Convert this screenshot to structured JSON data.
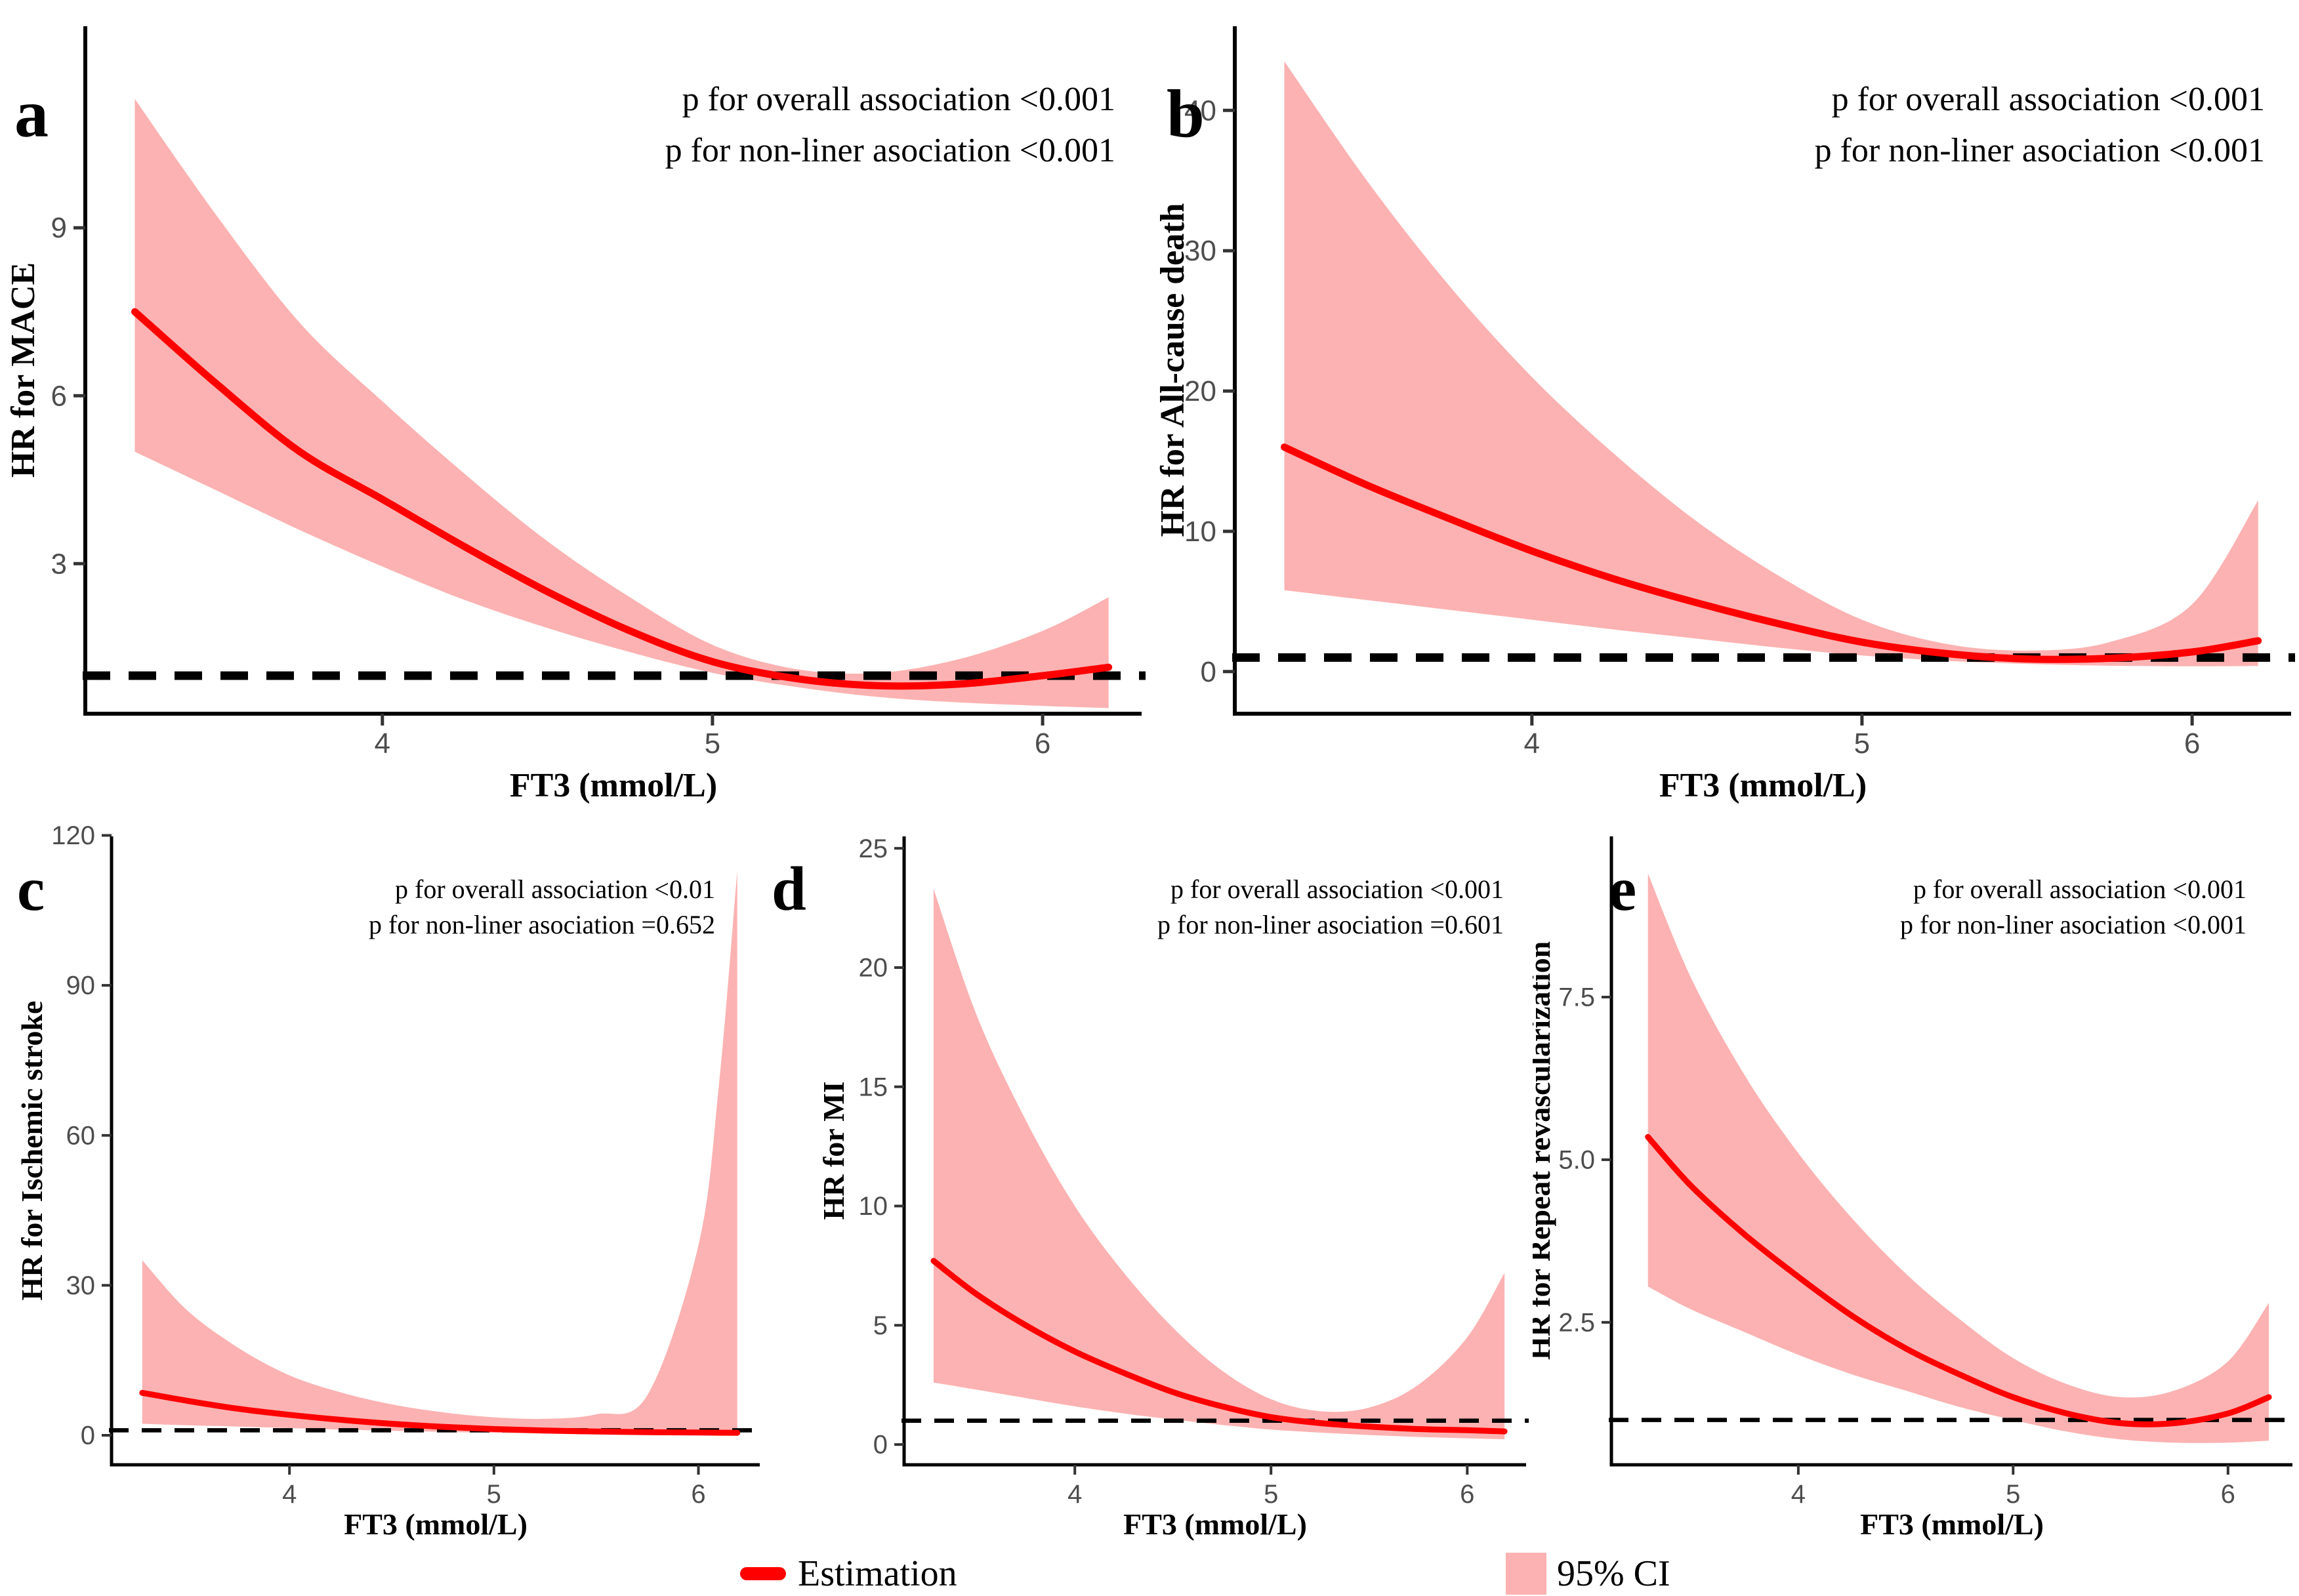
{
  "figure": {
    "x_axis_label": "FT3 (mmol/L)",
    "legend": {
      "estimation": "Estimation",
      "ci": "95% CI"
    },
    "colors": {
      "estimation_line": "#FF0000",
      "ci_band": "#FCB2B2",
      "reference_dash": "#000000",
      "axis_line": "#000000",
      "tick_label": "#4D4D4D",
      "tick_mark": "#333333"
    }
  },
  "chart_data": [
    {
      "type": "line",
      "panel": "a",
      "ylabel": "HR for MACE",
      "xlabel": "FT3 (mmol/L)",
      "annotations": [
        "p for overall association <0.001",
        "p for non-liner asociation <0.001"
      ],
      "legend": [
        "Estimation",
        "95% CI"
      ],
      "reference_line_y": 1,
      "x": [
        3.25,
        3.5,
        3.75,
        4.0,
        4.25,
        4.5,
        4.75,
        5.0,
        5.25,
        5.5,
        5.75,
        6.0,
        6.2
      ],
      "estimation": [
        7.5,
        6.2,
        5.0,
        4.15,
        3.3,
        2.5,
        1.8,
        1.25,
        0.95,
        0.82,
        0.85,
        1.0,
        1.15
      ],
      "ci_lower": [
        5.0,
        4.3,
        3.6,
        2.95,
        2.35,
        1.85,
        1.42,
        1.05,
        0.8,
        0.62,
        0.52,
        0.46,
        0.42
      ],
      "ci_upper": [
        11.3,
        9.2,
        7.3,
        5.9,
        4.6,
        3.4,
        2.4,
        1.55,
        1.12,
        1.05,
        1.3,
        1.8,
        2.4
      ],
      "xticks": [
        4,
        5,
        6
      ],
      "xtick_labels": [
        "4",
        "5",
        "6"
      ],
      "yticks": [
        3,
        6,
        9
      ],
      "ytick_labels": [
        "3",
        "6",
        "9"
      ],
      "xlim": [
        3.1,
        6.3
      ],
      "ylim": [
        0.32,
        12.6
      ],
      "grid": false
    },
    {
      "type": "line",
      "panel": "b",
      "ylabel": "HR for All-cause death",
      "xlabel": "FT3 (mmol/L)",
      "annotations": [
        "p for overall association <0.001",
        "p for non-liner asociation <0.001"
      ],
      "legend": [
        "Estimation",
        "95% CI"
      ],
      "reference_line_y": 1,
      "x": [
        3.25,
        3.5,
        3.75,
        4.0,
        4.25,
        4.5,
        4.75,
        5.0,
        5.25,
        5.5,
        5.75,
        6.0,
        6.2
      ],
      "estimation": [
        16.0,
        13.3,
        10.9,
        8.6,
        6.6,
        4.9,
        3.4,
        2.1,
        1.3,
        0.9,
        0.95,
        1.4,
        2.2
      ],
      "ci_lower": [
        5.8,
        5.1,
        4.4,
        3.7,
        3.0,
        2.35,
        1.7,
        1.15,
        0.78,
        0.55,
        0.42,
        0.38,
        0.4
      ],
      "ci_upper": [
        43.5,
        35.0,
        27.5,
        21.0,
        15.5,
        10.7,
        6.8,
        3.7,
        2.0,
        1.5,
        2.1,
        4.8,
        12.2
      ],
      "xticks": [
        4,
        5,
        6
      ],
      "xtick_labels": [
        "4",
        "5",
        "6"
      ],
      "yticks": [
        0,
        10,
        20,
        30,
        40
      ],
      "ytick_labels": [
        "0",
        "10",
        "20",
        "30",
        "40"
      ],
      "xlim": [
        3.1,
        6.3
      ],
      "ylim": [
        -3,
        46
      ],
      "grid": false
    },
    {
      "type": "line",
      "panel": "c",
      "ylabel": "HR for Ischemic stroke",
      "xlabel": "FT3 (mmol/L)",
      "annotations": [
        "p for overall association <0.01",
        "p for non-liner asociation =0.652"
      ],
      "legend": [
        "Estimation",
        "95% CI"
      ],
      "reference_line_y": 1,
      "x": [
        3.28,
        3.5,
        3.75,
        4.0,
        4.25,
        4.5,
        4.75,
        5.0,
        5.25,
        5.5,
        5.75,
        6.0,
        6.1,
        6.19
      ],
      "estimation": [
        8.5,
        6.9,
        5.3,
        4.1,
        3.1,
        2.3,
        1.7,
        1.25,
        0.95,
        0.75,
        0.62,
        0.55,
        0.52,
        0.5
      ],
      "ci_lower": [
        2.3,
        2.0,
        1.75,
        1.45,
        1.15,
        0.9,
        0.68,
        0.5,
        0.35,
        0.22,
        0.14,
        0.08,
        0.06,
        0.05
      ],
      "ci_upper": [
        35.0,
        25.0,
        17.5,
        12.0,
        8.6,
        6.2,
        4.6,
        3.6,
        3.3,
        4.2,
        8.0,
        38.0,
        70.0,
        113.0
      ],
      "xticks": [
        4,
        5,
        6
      ],
      "xtick_labels": [
        "4",
        "5",
        "6"
      ],
      "yticks": [
        0,
        30,
        60,
        90,
        120
      ],
      "ytick_labels": [
        "0",
        "30",
        "60",
        "90",
        "120"
      ],
      "xlim": [
        3.13,
        6.3
      ],
      "ylim": [
        -5.9,
        119.8
      ],
      "grid": false
    },
    {
      "type": "line",
      "panel": "d",
      "ylabel": "HR for MI",
      "xlabel": "FT3 (mmol/L)",
      "annotations": [
        "p for overall association <0.001",
        "p for non-liner asociation =0.601"
      ],
      "legend": [
        "Estimation",
        "95% CI"
      ],
      "reference_line_y": 1,
      "x": [
        3.28,
        3.5,
        3.75,
        4.0,
        4.25,
        4.5,
        4.75,
        5.0,
        5.25,
        5.5,
        5.75,
        6.0,
        6.19
      ],
      "estimation": [
        7.7,
        6.3,
        5.0,
        3.9,
        3.0,
        2.2,
        1.6,
        1.15,
        0.9,
        0.75,
        0.65,
        0.6,
        0.55
      ],
      "ci_lower": [
        2.6,
        2.3,
        1.95,
        1.6,
        1.3,
        1.05,
        0.82,
        0.63,
        0.5,
        0.4,
        0.32,
        0.26,
        0.22
      ],
      "ci_upper": [
        23.3,
        18.0,
        13.6,
        10.0,
        7.2,
        4.9,
        3.1,
        1.9,
        1.4,
        1.55,
        2.5,
        4.5,
        7.2
      ],
      "xticks": [
        4,
        5,
        6
      ],
      "xtick_labels": [
        "4",
        "5",
        "6"
      ],
      "yticks": [
        0,
        5,
        10,
        15,
        20,
        25
      ],
      "ytick_labels": [
        "0",
        "5",
        "10",
        "15",
        "20",
        "25"
      ],
      "xlim": [
        3.13,
        6.3
      ],
      "ylim": [
        -0.85,
        25.5
      ],
      "grid": false
    },
    {
      "type": "line",
      "panel": "e",
      "ylabel": "HR for Repeat revascularization",
      "xlabel": "FT3 (mmol/L)",
      "annotations": [
        "p for overall association <0.001",
        "p for non-liner asociation <0.001"
      ],
      "legend": [
        "Estimation",
        "95% CI"
      ],
      "reference_line_y": 1,
      "x": [
        3.3,
        3.5,
        3.75,
        4.0,
        4.25,
        4.5,
        4.75,
        5.0,
        5.25,
        5.5,
        5.75,
        6.0,
        6.19
      ],
      "estimation": [
        5.35,
        4.6,
        3.85,
        3.2,
        2.6,
        2.1,
        1.7,
        1.35,
        1.1,
        0.95,
        0.95,
        1.1,
        1.35
      ],
      "ci_lower": [
        3.05,
        2.7,
        2.35,
        2.0,
        1.7,
        1.45,
        1.2,
        1.0,
        0.82,
        0.7,
        0.65,
        0.65,
        0.68
      ],
      "ci_upper": [
        9.4,
        7.8,
        6.3,
        5.1,
        4.1,
        3.25,
        2.55,
        1.95,
        1.55,
        1.35,
        1.45,
        1.9,
        2.8
      ],
      "xticks": [
        4,
        5,
        6
      ],
      "xtick_labels": [
        "4",
        "5",
        "6"
      ],
      "yticks": [
        2.5,
        5.0,
        7.5
      ],
      "ytick_labels": [
        "2.5",
        "5.0",
        "7.5"
      ],
      "xlim": [
        3.13,
        6.3
      ],
      "ylim": [
        0.31,
        9.97
      ],
      "grid": false
    }
  ]
}
